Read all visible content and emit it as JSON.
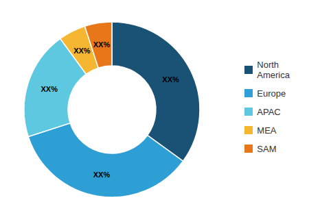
{
  "chart_data": {
    "type": "donut",
    "categories": [
      "North\nAmerica",
      "Europe",
      "APAC",
      "MEA",
      "SAM"
    ],
    "values": [
      35,
      35,
      20,
      5,
      5
    ],
    "value_labels": [
      "XX%",
      "XX%",
      "XX%",
      "XX%",
      "XX%"
    ],
    "data_labels": true,
    "colors": [
      "#1a5276",
      "#2e9fd4",
      "#5ec8e0",
      "#f5b731",
      "#e8771a"
    ],
    "legend": "right"
  }
}
